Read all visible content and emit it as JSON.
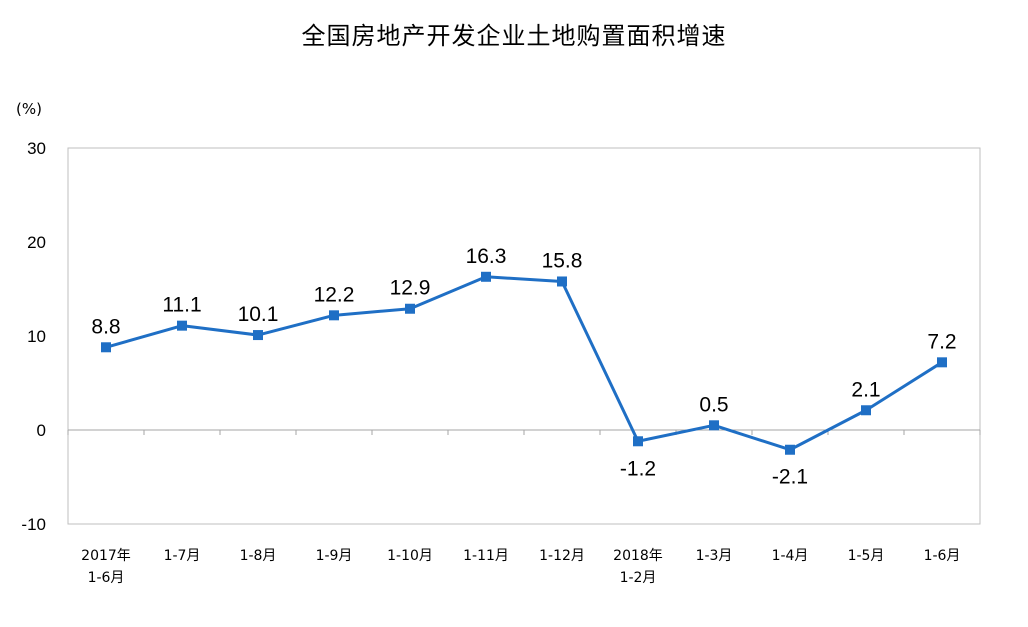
{
  "chart_data": {
    "type": "line",
    "title": "全国房地产开发企业土地购置面积增速",
    "ylabel": "(%)",
    "xlabel": "",
    "ylim": [
      -10,
      30
    ],
    "yticks": [
      -10,
      0,
      10,
      20,
      30
    ],
    "grid": false,
    "legend": "none",
    "color": "#1f6fc5",
    "categories": [
      "2017年\n1-6月",
      "1-7月",
      "1-8月",
      "1-9月",
      "1-10月",
      "1-11月",
      "1-12月",
      "2018年\n1-2月",
      "1-3月",
      "1-4月",
      "1-5月",
      "1-6月"
    ],
    "series": [
      {
        "values": [
          8.8,
          11.1,
          10.1,
          12.2,
          12.9,
          16.3,
          15.8,
          -1.2,
          0.5,
          -2.1,
          2.1,
          7.2
        ],
        "labels": [
          "8.8",
          "11.1",
          "10.1",
          "12.2",
          "12.9",
          "16.3",
          "15.8",
          "-1.2",
          "0.5",
          "-2.1",
          "2.1",
          "7.2"
        ]
      }
    ]
  }
}
